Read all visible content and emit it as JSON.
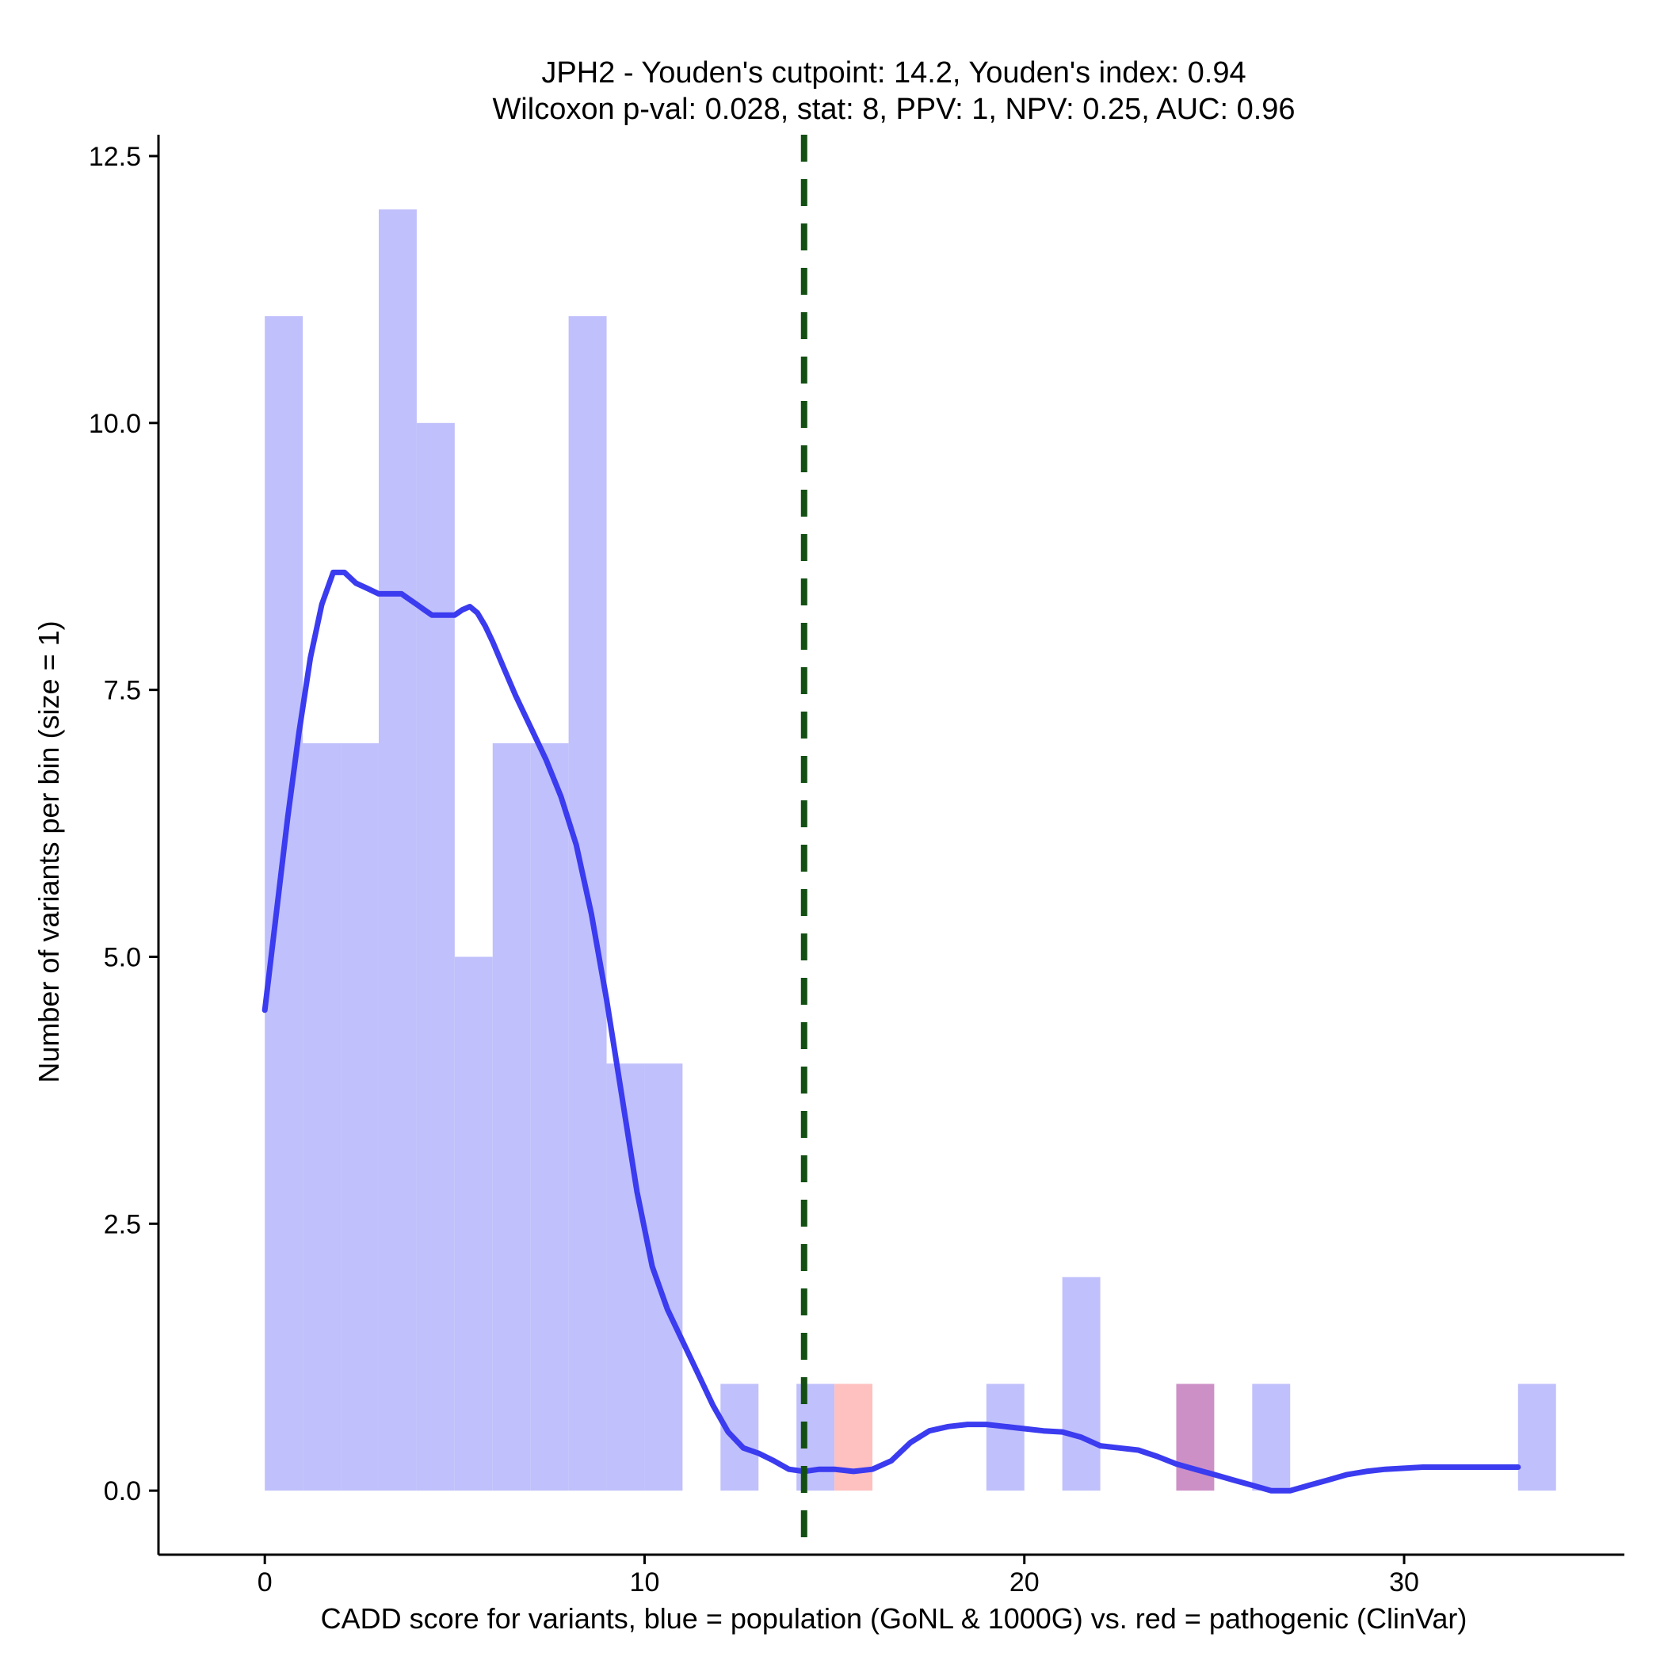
{
  "chart_data": {
    "type": "histogram",
    "title": "JPH2 - Youden's cutpoint: 14.2, Youden's index: 0.94",
    "subtitle": "Wilcoxon p-val: 0.028, stat: 8, PPV: 1, NPV: 0.25, AUC: 0.96",
    "xlabel": "CADD score for variants, blue = population (GoNL & 1000G) vs. red = pathogenic (ClinVar)",
    "ylabel": "Number of variants per bin (size = 1)",
    "xlim": [
      -2.8,
      35.8
    ],
    "ylim": [
      -0.6,
      12.7
    ],
    "x_ticks": [
      {
        "value": 0,
        "label": "0"
      },
      {
        "value": 10,
        "label": "10"
      },
      {
        "value": 20,
        "label": "20"
      },
      {
        "value": 30,
        "label": "30"
      }
    ],
    "y_ticks": [
      {
        "value": 0,
        "label": "0.0"
      },
      {
        "value": 2.5,
        "label": "2.5"
      },
      {
        "value": 5,
        "label": "5.0"
      },
      {
        "value": 7.5,
        "label": "7.5"
      },
      {
        "value": 10,
        "label": "10.0"
      },
      {
        "value": 12.5,
        "label": "12.5"
      }
    ],
    "bin_width": 1,
    "colors": {
      "population": "#c0c0fc",
      "pathogenic": "#ffc0c0",
      "overlap": "#cd90c6",
      "density": "#3b3bf0",
      "cutpoint": "#134f13",
      "axis": "#000000"
    },
    "series": [
      {
        "name": "population (GoNL & 1000G)",
        "bins": [
          {
            "start": 0,
            "count": 11
          },
          {
            "start": 1,
            "count": 7
          },
          {
            "start": 2,
            "count": 7
          },
          {
            "start": 3,
            "count": 12
          },
          {
            "start": 4,
            "count": 10
          },
          {
            "start": 5,
            "count": 5
          },
          {
            "start": 6,
            "count": 7
          },
          {
            "start": 7,
            "count": 7
          },
          {
            "start": 8,
            "count": 11
          },
          {
            "start": 9,
            "count": 4
          },
          {
            "start": 10,
            "count": 4
          },
          {
            "start": 12,
            "count": 1
          },
          {
            "start": 14,
            "count": 1
          },
          {
            "start": 19,
            "count": 1
          },
          {
            "start": 21,
            "count": 2
          },
          {
            "start": 24,
            "count": 1
          },
          {
            "start": 26,
            "count": 1
          },
          {
            "start": 33,
            "count": 1
          }
        ]
      },
      {
        "name": "pathogenic (ClinVar)",
        "bins": [
          {
            "start": 15,
            "count": 1
          },
          {
            "start": 24,
            "count": 1
          }
        ]
      }
    ],
    "density_curve": {
      "name": "population density (scaled)",
      "x": [
        0,
        0.3,
        0.6,
        0.9,
        1.2,
        1.5,
        1.8,
        2.1,
        2.4,
        2.7,
        3.0,
        3.2,
        3.4,
        3.6,
        3.8,
        4.0,
        4.2,
        4.4,
        4.6,
        4.8,
        5.0,
        5.2,
        5.4,
        5.6,
        5.8,
        6.0,
        6.3,
        6.6,
        7.0,
        7.4,
        7.8,
        8.2,
        8.6,
        9.0,
        9.4,
        9.8,
        10.2,
        10.6,
        11.0,
        11.4,
        11.8,
        12.2,
        12.6,
        13.0,
        13.4,
        13.8,
        14.2,
        14.6,
        15.0,
        15.5,
        16.0,
        16.5,
        17.0,
        17.5,
        18.0,
        18.5,
        19.0,
        19.5,
        20.0,
        20.5,
        21.0,
        21.5,
        22.0,
        22.5,
        23.0,
        23.5,
        24.0,
        24.5,
        25.0,
        25.5,
        26.0,
        26.5,
        27.0,
        27.5,
        28.0,
        28.5,
        29.0,
        29.5,
        30.0,
        30.5,
        31.0,
        31.5,
        32.0,
        32.5,
        33.0
      ],
      "y": [
        4.5,
        5.4,
        6.3,
        7.1,
        7.8,
        8.3,
        8.6,
        8.6,
        8.5,
        8.45,
        8.4,
        8.4,
        8.4,
        8.4,
        8.35,
        8.3,
        8.25,
        8.2,
        8.2,
        8.2,
        8.2,
        8.25,
        8.28,
        8.22,
        8.1,
        7.95,
        7.7,
        7.45,
        7.15,
        6.85,
        6.5,
        6.05,
        5.4,
        4.6,
        3.7,
        2.8,
        2.1,
        1.7,
        1.4,
        1.1,
        0.8,
        0.55,
        0.4,
        0.35,
        0.28,
        0.2,
        0.18,
        0.2,
        0.2,
        0.18,
        0.2,
        0.28,
        0.45,
        0.56,
        0.6,
        0.62,
        0.62,
        0.6,
        0.58,
        0.56,
        0.55,
        0.5,
        0.42,
        0.4,
        0.38,
        0.32,
        0.25,
        0.2,
        0.15,
        0.1,
        0.05,
        0.0,
        0.0,
        0.05,
        0.1,
        0.15,
        0.18,
        0.2,
        0.21,
        0.22,
        0.22,
        0.22,
        0.22,
        0.22,
        0.22
      ]
    },
    "cutpoint": {
      "value": 14.2,
      "label": "Youden's cutpoint"
    }
  }
}
